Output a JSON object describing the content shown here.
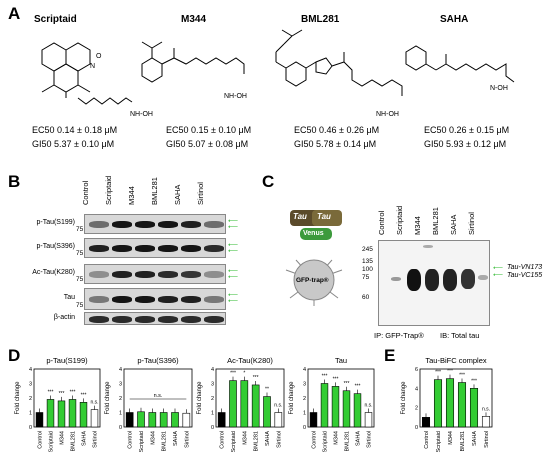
{
  "panels": {
    "a": "A",
    "b": "B",
    "c": "C",
    "d": "D",
    "e": "E"
  },
  "compounds": [
    {
      "name": "Scriptaid",
      "ec50": "EC50 0.14 ± 0.18 μM",
      "gi50": "GI50 5.37 ± 0.10 μM"
    },
    {
      "name": "M344",
      "ec50": "EC50 0.15 ± 0.10 μM",
      "gi50": "GI50 5.07 ± 0.08 μM"
    },
    {
      "name": "BML281",
      "ec50": "EC50 0.46 ± 0.26 μM",
      "gi50": "GI50 5.78 ± 0.14 μM"
    },
    {
      "name": "SAHA",
      "ec50": "EC50 0.26 ± 0.15 μM",
      "gi50": "GI50 5.93 ± 0.12 μM"
    }
  ],
  "structure_labels": {
    "nhoh": "NH-OH",
    "nh_oh": "N-OH",
    "n": "N",
    "o": "O",
    "nh": "N H"
  },
  "western_b": {
    "lanes": [
      "Control",
      "Scriptaid",
      "M344",
      "BML281",
      "SAHA",
      "Sirtinol"
    ],
    "rows": [
      {
        "label": "p-Tau(S199)",
        "mw": "75"
      },
      {
        "label": "p-Tau(S396)",
        "mw": "75"
      },
      {
        "label": "Ac-Tau(K280)",
        "mw": "75"
      },
      {
        "label": "Tau",
        "mw": "75"
      },
      {
        "label": "β-actin",
        "mw": ""
      }
    ]
  },
  "western_c": {
    "lanes": [
      "Control",
      "Scriptaid",
      "M344",
      "BML281",
      "SAHA",
      "Sirtinol"
    ],
    "mw_markers": [
      "245",
      "135",
      "100",
      "75",
      "60"
    ],
    "band_labels": [
      "Tau-VN173",
      "Tau-VC155"
    ],
    "footer_ip": "IP: GFP-Trap®",
    "footer_ib": "IB: Total tau",
    "schematic": {
      "tau1": "Tau",
      "tau2": "Tau",
      "venus": "Venus",
      "trap": "GFP-trap®"
    }
  },
  "chart_data": [
    {
      "type": "bar",
      "title": "p-Tau(S199)",
      "ylabel": "Fold change",
      "categories": [
        "Control",
        "Scriptaid",
        "M344",
        "BML281",
        "SAHA",
        "Sirtinol"
      ],
      "values": [
        1.0,
        1.9,
        1.8,
        1.9,
        1.7,
        1.2
      ],
      "ylim": [
        0,
        4
      ],
      "yticks": [
        "4",
        "3",
        "2",
        "1",
        "0"
      ],
      "annotations": [
        "",
        "***",
        "***",
        "***",
        "***",
        "n.s."
      ]
    },
    {
      "type": "bar",
      "title": "p-Tau(S396)",
      "ylabel": "Fold change",
      "categories": [
        "Control",
        "Scriptaid",
        "M344",
        "BML281",
        "SAHA",
        "Sirtinol"
      ],
      "values": [
        1.0,
        1.05,
        1.0,
        1.0,
        1.0,
        0.95
      ],
      "ylim": [
        0,
        4
      ],
      "yticks": [
        "4",
        "3",
        "2",
        "1",
        "0"
      ],
      "annotations": [
        "n.s."
      ]
    },
    {
      "type": "bar",
      "title": "Ac-Tau(K280)",
      "ylabel": "Fold change",
      "categories": [
        "Control",
        "Scriptaid",
        "M344",
        "BML281",
        "SAHA",
        "Sirtinol"
      ],
      "values": [
        1.0,
        3.2,
        3.2,
        2.9,
        2.1,
        1.0
      ],
      "ylim": [
        0,
        4
      ],
      "yticks": [
        "4",
        "3",
        "2",
        "1",
        "0"
      ],
      "annotations": [
        "",
        "***",
        "*",
        "***",
        "**",
        "n.s."
      ]
    },
    {
      "type": "bar",
      "title": "Tau",
      "ylabel": "Fold change",
      "categories": [
        "Control",
        "Scriptaid",
        "M344",
        "BML281",
        "SAHA",
        "Sirtinol"
      ],
      "values": [
        1.0,
        3.0,
        2.8,
        2.5,
        2.3,
        1.0
      ],
      "ylim": [
        0,
        4
      ],
      "yticks": [
        "4",
        "3",
        "2",
        "1",
        "0"
      ],
      "annotations": [
        "",
        "***",
        "***",
        "***",
        "***",
        "n.s."
      ]
    },
    {
      "type": "bar",
      "title": "Tau-BiFC complex",
      "ylabel": "Fold change",
      "categories": [
        "Control",
        "Scriptaid",
        "M344",
        "BML281",
        "SAHA",
        "Sirtinol"
      ],
      "values": [
        1.0,
        4.9,
        5.0,
        4.6,
        4.0,
        1.1
      ],
      "ylim": [
        0,
        6
      ],
      "yticks": [
        "6",
        "4",
        "2",
        "0"
      ],
      "annotations": [
        "",
        "***",
        "***",
        "***",
        "***",
        "n.s."
      ]
    }
  ],
  "colors": {
    "control": "#000000",
    "treated": "#33cc33",
    "sirtinol": "#ffffff",
    "arrow": "#2db82d"
  }
}
